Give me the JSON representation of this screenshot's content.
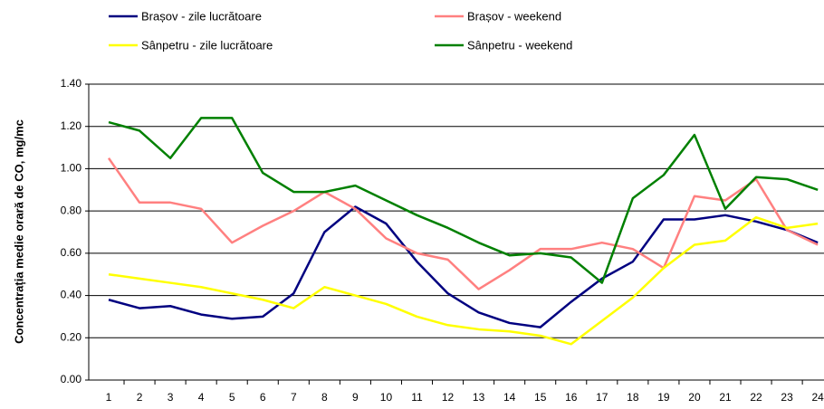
{
  "chart_data": {
    "type": "line",
    "y_label": "Concentrația medie orară de CO, mg/mc",
    "categories": [
      "1",
      "2",
      "3",
      "4",
      "5",
      "6",
      "7",
      "8",
      "9",
      "10",
      "11",
      "12",
      "13",
      "14",
      "15",
      "16",
      "17",
      "18",
      "19",
      "20",
      "21",
      "22",
      "23",
      "24"
    ],
    "series": [
      {
        "name": "Brașov - zile lucrătoare",
        "color": "#000080",
        "values": [
          0.38,
          0.34,
          0.35,
          0.31,
          0.29,
          0.3,
          0.41,
          0.7,
          0.82,
          0.74,
          0.56,
          0.41,
          0.32,
          0.27,
          0.25,
          0.37,
          0.48,
          0.56,
          0.76,
          0.76,
          0.78,
          0.75,
          0.71,
          0.65
        ]
      },
      {
        "name": "Brașov - weekend",
        "color": "#ff8080",
        "values": [
          1.05,
          0.84,
          0.84,
          0.81,
          0.65,
          0.73,
          0.8,
          0.89,
          0.81,
          0.67,
          0.6,
          0.57,
          0.43,
          0.52,
          0.62,
          0.62,
          0.65,
          0.62,
          0.53,
          0.87,
          0.85,
          0.95,
          0.71,
          0.64
        ]
      },
      {
        "name": "Sânpetru - zile lucrătoare",
        "color": "#ffff00",
        "values": [
          0.5,
          0.48,
          0.46,
          0.44,
          0.41,
          0.38,
          0.34,
          0.44,
          0.4,
          0.36,
          0.3,
          0.26,
          0.24,
          0.23,
          0.21,
          0.17,
          0.28,
          0.39,
          0.53,
          0.64,
          0.66,
          0.77,
          0.72,
          0.74
        ]
      },
      {
        "name": "Sânpetru - weekend",
        "color": "#008000",
        "values": [
          1.22,
          1.18,
          1.05,
          1.24,
          1.24,
          0.98,
          0.89,
          0.89,
          0.92,
          0.85,
          0.78,
          0.72,
          0.65,
          0.59,
          0.6,
          0.58,
          0.46,
          0.86,
          0.97,
          1.16,
          0.81,
          0.96,
          0.95,
          0.9
        ]
      }
    ],
    "ylim": [
      0,
      1.4
    ],
    "yticks": [
      {
        "value": 0,
        "label": "0.00"
      },
      {
        "value": 0.2,
        "label": "0.20"
      },
      {
        "value": 0.4,
        "label": "0.40"
      },
      {
        "value": 0.6,
        "label": "0.60"
      },
      {
        "value": 0.8,
        "label": "0.80"
      },
      {
        "value": 1,
        "label": "1.00"
      },
      {
        "value": 1.2,
        "label": "1.20"
      },
      {
        "value": 1.4,
        "label": "1.40"
      }
    ],
    "grid": true
  }
}
